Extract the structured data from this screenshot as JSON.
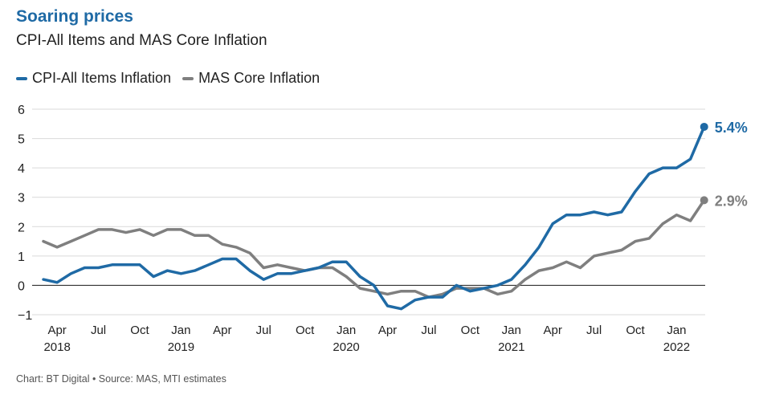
{
  "title": "Soaring prices",
  "subtitle": "CPI-All Items and MAS Core Inflation",
  "source": "Chart: BT Digital • Source: MAS, MTI estimates",
  "colors": {
    "cpi": "#1f6aa5",
    "core": "#7f7f7f",
    "grid": "#d9d9d9",
    "zero": "#333333"
  },
  "chart_data": {
    "type": "line",
    "title": "Soaring prices",
    "subtitle": "CPI-All Items and MAS Core Inflation",
    "ylim": [
      -1,
      6
    ],
    "yticks": [
      -1,
      0,
      1,
      2,
      3,
      4,
      5,
      6
    ],
    "ytick_labels": [
      "−1",
      "0",
      "1",
      "2",
      "3",
      "4",
      "5",
      "6"
    ],
    "grid": true,
    "legend_position": "top-left",
    "x": [
      "2018-03",
      "2018-04",
      "2018-05",
      "2018-06",
      "2018-07",
      "2018-08",
      "2018-09",
      "2018-10",
      "2018-11",
      "2018-12",
      "2019-01",
      "2019-02",
      "2019-03",
      "2019-04",
      "2019-05",
      "2019-06",
      "2019-07",
      "2019-08",
      "2019-09",
      "2019-10",
      "2019-11",
      "2019-12",
      "2020-01",
      "2020-02",
      "2020-03",
      "2020-04",
      "2020-05",
      "2020-06",
      "2020-07",
      "2020-08",
      "2020-09",
      "2020-10",
      "2020-11",
      "2020-12",
      "2021-01",
      "2021-02",
      "2021-03",
      "2021-04",
      "2021-05",
      "2021-06",
      "2021-07",
      "2021-08",
      "2021-09",
      "2021-10",
      "2021-11",
      "2021-12",
      "2022-01",
      "2022-02",
      "2022-03"
    ],
    "xticks": [
      {
        "x": "2018-04",
        "label": "Apr",
        "year": "2018"
      },
      {
        "x": "2018-07",
        "label": "Jul",
        "year": ""
      },
      {
        "x": "2018-10",
        "label": "Oct",
        "year": ""
      },
      {
        "x": "2019-01",
        "label": "Jan",
        "year": "2019"
      },
      {
        "x": "2019-04",
        "label": "Apr",
        "year": ""
      },
      {
        "x": "2019-07",
        "label": "Jul",
        "year": ""
      },
      {
        "x": "2019-10",
        "label": "Oct",
        "year": ""
      },
      {
        "x": "2020-01",
        "label": "Jan",
        "year": "2020"
      },
      {
        "x": "2020-04",
        "label": "Apr",
        "year": ""
      },
      {
        "x": "2020-07",
        "label": "Jul",
        "year": ""
      },
      {
        "x": "2020-10",
        "label": "Oct",
        "year": ""
      },
      {
        "x": "2021-01",
        "label": "Jan",
        "year": "2021"
      },
      {
        "x": "2021-04",
        "label": "Apr",
        "year": ""
      },
      {
        "x": "2021-07",
        "label": "Jul",
        "year": ""
      },
      {
        "x": "2021-10",
        "label": "Oct",
        "year": ""
      },
      {
        "x": "2022-01",
        "label": "Jan",
        "year": "2022"
      }
    ],
    "series": [
      {
        "name": "CPI-All Items Inflation",
        "color": "#1f6aa5",
        "end_label": "5.4%",
        "values": [
          0.2,
          0.1,
          0.4,
          0.6,
          0.6,
          0.7,
          0.7,
          0.7,
          0.3,
          0.5,
          0.4,
          0.5,
          0.7,
          0.9,
          0.9,
          0.5,
          0.2,
          0.4,
          0.4,
          0.5,
          0.6,
          0.8,
          0.8,
          0.3,
          0.0,
          -0.7,
          -0.8,
          -0.5,
          -0.4,
          -0.4,
          0.0,
          -0.2,
          -0.1,
          0.0,
          0.2,
          0.7,
          1.3,
          2.1,
          2.4,
          2.4,
          2.5,
          2.4,
          2.5,
          3.2,
          3.8,
          4.0,
          4.0,
          4.3,
          5.4
        ]
      },
      {
        "name": "MAS Core Inflation",
        "color": "#7f7f7f",
        "end_label": "2.9%",
        "values": [
          1.5,
          1.3,
          1.5,
          1.7,
          1.9,
          1.9,
          1.8,
          1.9,
          1.7,
          1.9,
          1.9,
          1.7,
          1.7,
          1.4,
          1.3,
          1.1,
          0.6,
          0.7,
          0.6,
          0.5,
          0.6,
          0.6,
          0.3,
          -0.1,
          -0.2,
          -0.3,
          -0.2,
          -0.2,
          -0.4,
          -0.3,
          -0.1,
          -0.1,
          -0.1,
          -0.3,
          -0.2,
          0.2,
          0.5,
          0.6,
          0.8,
          0.6,
          1.0,
          1.1,
          1.2,
          1.5,
          1.6,
          2.1,
          2.4,
          2.2,
          2.9
        ]
      }
    ]
  }
}
